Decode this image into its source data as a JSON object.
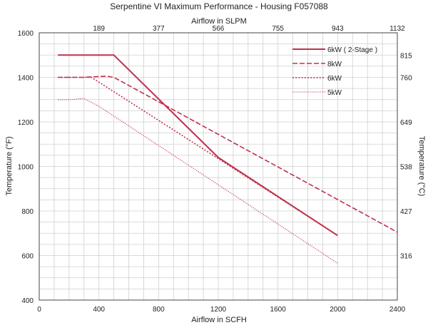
{
  "chart_data": {
    "type": "line",
    "title": "Serpentine VI Maximum Performance - Housing F057088",
    "xlabel": "Airflow in SCFH",
    "x2label": "Airflow in SLPM",
    "ylabel": "Temperature (°F)",
    "y2label": "Temperature (°C)",
    "xlim": [
      0,
      2400
    ],
    "ylim": [
      400,
      1600
    ],
    "x_ticks": [
      0,
      400,
      800,
      1200,
      1600,
      2000,
      2400
    ],
    "y_ticks": [
      400,
      600,
      800,
      1000,
      1200,
      1400,
      1600
    ],
    "x2_ticks": [
      {
        "label": "189",
        "at": 400
      },
      {
        "label": "377",
        "at": 800
      },
      {
        "label": "566",
        "at": 1200
      },
      {
        "label": "755",
        "at": 1600
      },
      {
        "label": "943",
        "at": 2000
      },
      {
        "label": "1132",
        "at": 2400
      }
    ],
    "y2_ticks": [
      {
        "label": "815",
        "at": 1500
      },
      {
        "label": "760",
        "at": 1400
      },
      {
        "label": "649",
        "at": 1200
      },
      {
        "label": "538",
        "at": 1000
      },
      {
        "label": "427",
        "at": 800
      },
      {
        "label": "316",
        "at": 600
      }
    ],
    "grid": true,
    "legend_position": "top-right",
    "series": [
      {
        "name": "6kW   ( 2-Stage )",
        "style": "solid",
        "color": "#c0304e",
        "x": [
          125,
          500,
          1200,
          2000
        ],
        "y": [
          1500,
          1500,
          1040,
          690
        ]
      },
      {
        "name": "8kW",
        "style": "dashed",
        "color": "#c0304e",
        "x": [
          125,
          300,
          450,
          500,
          2400
        ],
        "y": [
          1400,
          1400,
          1405,
          1400,
          705
        ]
      },
      {
        "name": "6kW",
        "style": "dotted",
        "color": "#c0304e",
        "x": [
          125,
          350,
          1200,
          2000
        ],
        "y": [
          1400,
          1400,
          1035,
          690
        ]
      },
      {
        "name": "5kW",
        "style": "dotted-fine",
        "color": "#c0304e",
        "x": [
          125,
          200,
          300,
          400,
          2000
        ],
        "y": [
          1300,
          1300,
          1305,
          1270,
          565
        ]
      }
    ]
  }
}
